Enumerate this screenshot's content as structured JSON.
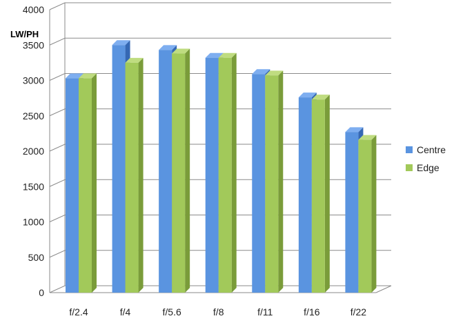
{
  "chart_data": {
    "type": "bar",
    "title": "",
    "xlabel": "",
    "ylabel": "LW/PH",
    "ylim": [
      0,
      4000
    ],
    "yticks": [
      0,
      500,
      1000,
      1500,
      2000,
      2500,
      3000,
      3500,
      4000
    ],
    "categories": [
      "f/2.4",
      "f/4",
      "f/5.6",
      "f/8",
      "f/11",
      "f/16",
      "f/22"
    ],
    "series": [
      {
        "name": "Centre",
        "values": [
          3030,
          3500,
          3430,
          3320,
          3090,
          2760,
          2270
        ]
      },
      {
        "name": "Edge",
        "values": [
          3030,
          3250,
          3380,
          3320,
          3070,
          2730,
          2160
        ]
      }
    ],
    "colors": {
      "Centre": {
        "front": "#5a94e0",
        "side": "#3568b4",
        "top": "#7eaef0"
      },
      "Edge": {
        "front": "#a2c95a",
        "side": "#7a9c3a",
        "top": "#bfdc80"
      }
    },
    "grid": true,
    "legend_position": "right"
  }
}
